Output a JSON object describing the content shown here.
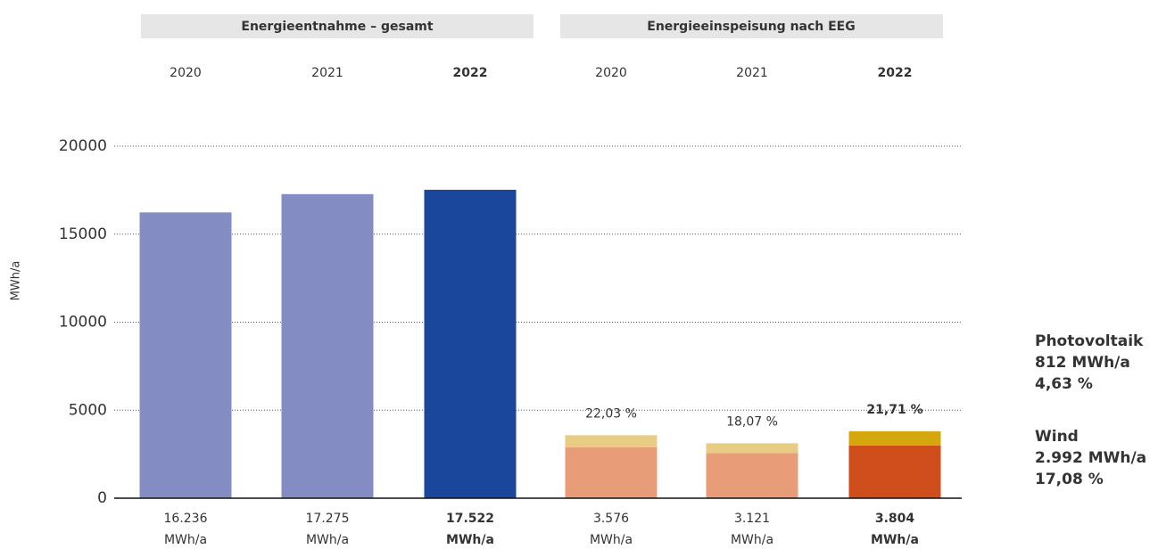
{
  "chart_data": {
    "type": "bar",
    "y_label": "MWh/a",
    "stack_title": "Energieeinspeisung nach EEG",
    "categories": [
      "2020",
      "2021",
      "2022",
      "2020",
      "2021",
      "2022"
    ],
    "emphasis": [
      false,
      false,
      true,
      false,
      false,
      true
    ],
    "series": [
      {
        "name": "Energieentnahme – gesamt",
        "stack": false,
        "colors": [
          "#848cc4",
          "#848cc4",
          "#1a479c",
          null,
          null,
          null
        ],
        "values": [
          16236,
          17275,
          17522,
          null,
          null,
          null
        ],
        "value_labels": [
          "16.236 MWh/a",
          "17.275 MWh/a",
          "17.522 MWh/a",
          null,
          null,
          null
        ]
      },
      {
        "name": "Wind",
        "stack": true,
        "color": "#d04e1c",
        "colors": [
          null,
          null,
          null,
          "#e89c78",
          "#e89c78",
          "#d04e1c"
        ],
        "values": [
          null,
          null,
          null,
          2900,
          2560,
          2992
        ],
        "details": [
          "2.992 MWh/a",
          "17,08 %"
        ]
      },
      {
        "name": "Photovoltaik",
        "stack": true,
        "color": "#d4a80c",
        "colors": [
          null,
          null,
          null,
          "#e8cc84",
          "#e8cc84",
          "#d4a80c"
        ],
        "values": [
          null,
          null,
          null,
          676,
          561,
          812
        ],
        "details": [
          "812 MWh/a",
          "4,63 %"
        ]
      }
    ],
    "totals": [
      null,
      null,
      null,
      3576,
      3121,
      3804
    ],
    "total_labels": [
      null,
      null,
      null,
      "3.576 MWh/a",
      "3.121 MWh/a",
      "3.804 MWh/a"
    ],
    "share_labels": [
      null,
      null,
      null,
      "22,03 %",
      "18,07 %",
      "21,71 %"
    ],
    "ylim": [
      0,
      20000
    ],
    "yticks": [
      0,
      5000,
      10000,
      15000,
      20000
    ],
    "grid": true
  }
}
